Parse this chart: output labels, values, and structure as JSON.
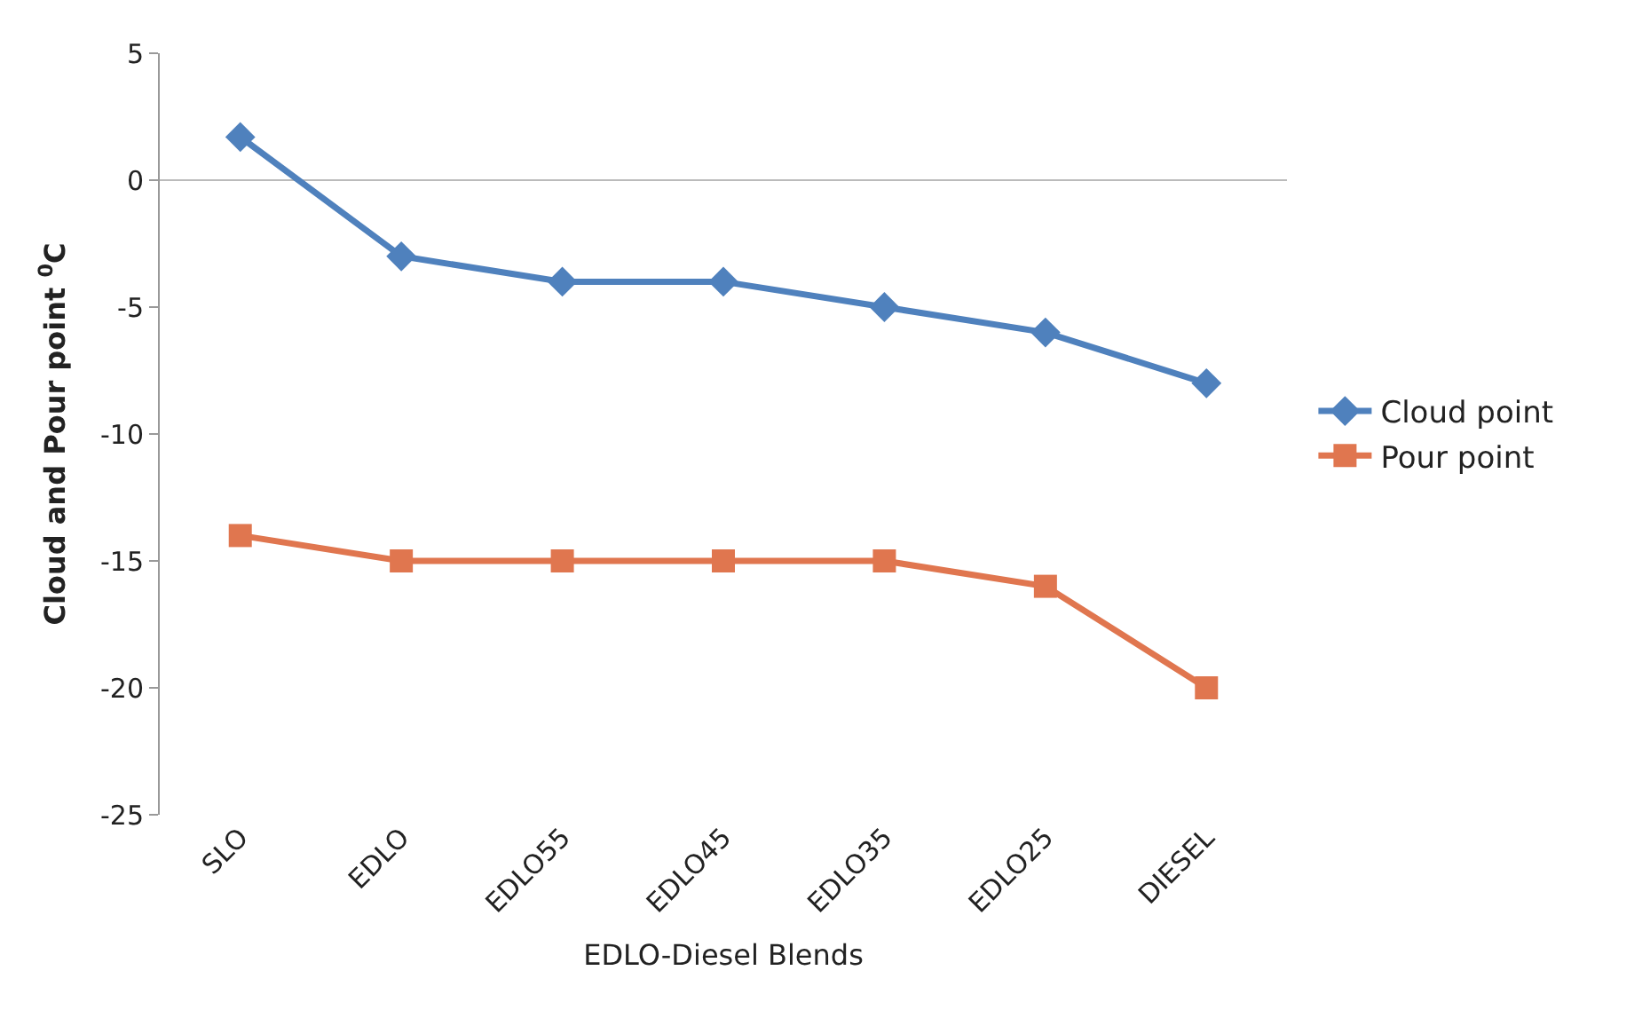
{
  "chart_data": {
    "type": "line",
    "xlabel": "EDLO-Diesel Blends",
    "ylabel": "Cloud and Pour point $^{0}$C",
    "categories": [
      "SLO",
      "EDLO",
      "EDLO55",
      "EDLO45",
      "EDLO35",
      "EDLO25",
      "DIESEL"
    ],
    "series": [
      {
        "name": "Cloud point",
        "color": "#4f81bd",
        "marker": "diamond",
        "values": [
          1.7,
          -3,
          -4,
          -4,
          -5,
          -6,
          -8
        ]
      },
      {
        "name": "Pour point",
        "color": "#e0764f",
        "marker": "square",
        "values": [
          -14,
          -15,
          -15,
          -15,
          -15,
          -16,
          -20
        ]
      }
    ],
    "ylim": [
      -25,
      5
    ],
    "yticks": [
      -25,
      -20,
      -15,
      -10,
      -5,
      0,
      5
    ],
    "grid": false,
    "ref_lines": [
      {
        "axis": "y",
        "value": 0,
        "color": "#bbbbbb"
      }
    ],
    "legend": "right",
    "line_style": "solid"
  }
}
